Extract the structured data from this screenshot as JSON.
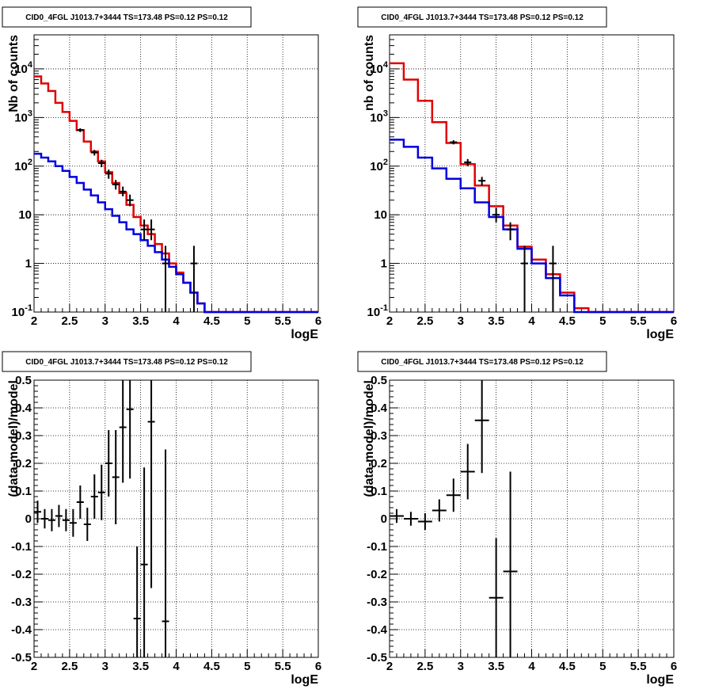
{
  "charts": [
    {
      "type": "histogram",
      "title": "CID0_4FGL J1013.7+3444 TS=173.48 PS=0.12 PS=0.12",
      "ylabel": "Nb of counts",
      "xlabel": "logE",
      "log_y": true,
      "xlim": [
        2,
        6
      ],
      "ylim": [
        0.1,
        50000
      ],
      "x_ticks": [
        "2",
        "2.5",
        "3",
        "3.5",
        "4",
        "4.5",
        "5",
        "5.5",
        "6"
      ],
      "y_ticks": [
        "10^-1",
        "1",
        "10",
        "10^2",
        "10^3",
        "10^4"
      ],
      "bin_edges": [
        2.0,
        2.1,
        2.2,
        2.3,
        2.4,
        2.5,
        2.6,
        2.7,
        2.8,
        2.9,
        3.0,
        3.1,
        3.2,
        3.3,
        3.4,
        3.5,
        3.6,
        3.7,
        3.8,
        3.9,
        4.0,
        4.1,
        4.2,
        4.3,
        4.4,
        4.5,
        4.6,
        4.7,
        4.8,
        4.9,
        5.0,
        5.1,
        5.2,
        5.3,
        5.4,
        5.5,
        5.6,
        5.7,
        5.8,
        5.9,
        6.0
      ],
      "series": [
        {
          "color": "#e00000",
          "values": [
            7000,
            5000,
            3500,
            2000,
            1300,
            850,
            550,
            320,
            200,
            125,
            75,
            45,
            28,
            16,
            9,
            6,
            4,
            2.5,
            1.6,
            1,
            0.65,
            0.4,
            0.25,
            0.15,
            0.1,
            0.1,
            0.1,
            0.1,
            0.1,
            0.1,
            0.1,
            0.1,
            0.1,
            0.1,
            0.1,
            0.1,
            0.1,
            0.1,
            0.1,
            0.1
          ]
        },
        {
          "color": "#0000e0",
          "values": [
            180,
            150,
            125,
            100,
            80,
            60,
            45,
            33,
            25,
            18,
            13,
            9.5,
            7,
            5,
            4,
            3,
            2.3,
            1.7,
            1.2,
            0.85,
            0.6,
            0.4,
            0.25,
            0.15,
            0.1,
            0.1,
            0.1,
            0.1,
            0.1,
            0.1,
            0.1,
            0.1,
            0.1,
            0.1,
            0.1,
            0.1,
            0.1,
            0.1,
            0.1,
            0.1
          ]
        }
      ],
      "points": [
        {
          "x": 2.65,
          "y": 550,
          "lo": 500,
          "hi": 600
        },
        {
          "x": 2.85,
          "y": 190,
          "lo": 165,
          "hi": 215
        },
        {
          "x": 2.95,
          "y": 115,
          "lo": 95,
          "hi": 135
        },
        {
          "x": 3.05,
          "y": 70,
          "lo": 55,
          "hi": 85
        },
        {
          "x": 3.15,
          "y": 42,
          "lo": 33,
          "hi": 52
        },
        {
          "x": 3.25,
          "y": 30,
          "lo": 24,
          "hi": 38
        },
        {
          "x": 3.35,
          "y": 20,
          "lo": 15,
          "hi": 26
        },
        {
          "x": 3.55,
          "y": 5,
          "lo": 3,
          "hi": 8
        },
        {
          "x": 3.65,
          "y": 5,
          "lo": 3,
          "hi": 8
        },
        {
          "x": 3.85,
          "y": 1,
          "lo": 0.1,
          "hi": 2.3
        },
        {
          "x": 4.25,
          "y": 1,
          "lo": 0.1,
          "hi": 2.3
        }
      ]
    },
    {
      "type": "histogram",
      "title": "CID0_4FGL J1013.7+3444 TS=173.48 PS=0.12 PS=0.12",
      "ylabel": "nb of counts",
      "xlabel": "logE",
      "log_y": true,
      "xlim": [
        2,
        6
      ],
      "ylim": [
        0.1,
        50000
      ],
      "x_ticks": [
        "2",
        "2.5",
        "3",
        "3.5",
        "4",
        "4.5",
        "5",
        "5.5",
        "6"
      ],
      "y_ticks": [
        "10^-1",
        "1",
        "10",
        "10^2",
        "10^3",
        "10^4"
      ],
      "bin_edges": [
        2.0,
        2.2,
        2.4,
        2.6,
        2.8,
        3.0,
        3.2,
        3.4,
        3.6,
        3.8,
        4.0,
        4.2,
        4.4,
        4.6,
        4.8,
        5.0,
        5.2,
        5.4,
        5.6,
        5.8,
        6.0
      ],
      "series": [
        {
          "color": "#e00000",
          "values": [
            13000,
            6000,
            2200,
            800,
            300,
            110,
            40,
            15,
            6,
            2.2,
            1.2,
            0.6,
            0.25,
            0.12,
            0.1,
            0.1,
            0.1,
            0.1,
            0.1,
            0.1
          ]
        },
        {
          "color": "#0000e0",
          "values": [
            350,
            250,
            150,
            90,
            55,
            35,
            18,
            9,
            5,
            2,
            1,
            0.5,
            0.22,
            0.1,
            0.1,
            0.1,
            0.1,
            0.1,
            0.1,
            0.1
          ]
        }
      ],
      "points": [
        {
          "x": 2.9,
          "y": 310,
          "lo": 280,
          "hi": 340
        },
        {
          "x": 3.1,
          "y": 120,
          "lo": 100,
          "hi": 140
        },
        {
          "x": 3.3,
          "y": 50,
          "lo": 40,
          "hi": 60
        },
        {
          "x": 3.5,
          "y": 10,
          "lo": 7,
          "hi": 14
        },
        {
          "x": 3.7,
          "y": 5,
          "lo": 3,
          "hi": 7
        },
        {
          "x": 3.9,
          "y": 1,
          "lo": 0.1,
          "hi": 2.3
        },
        {
          "x": 4.3,
          "y": 1,
          "lo": 0.1,
          "hi": 2.3
        }
      ]
    },
    {
      "type": "errorbar",
      "title": "CID0_4FGL J1013.7+3444 TS=173.48 PS=0.12 PS=0.12",
      "ylabel": "(data-model)/model",
      "xlabel": "logE",
      "log_y": false,
      "xlim": [
        2,
        6
      ],
      "ylim": [
        -0.5,
        0.5
      ],
      "x_ticks": [
        "2",
        "2.5",
        "3",
        "3.5",
        "4",
        "4.5",
        "5",
        "5.5",
        "6"
      ],
      "y_ticks": [
        "-0.5",
        "-0.4",
        "-0.3",
        "-0.2",
        "-0.1",
        "0",
        "0.1",
        "0.2",
        "0.3",
        "0.4",
        "0.5"
      ],
      "half_width": 0.05,
      "points": [
        {
          "x": 2.05,
          "y": 0.025,
          "err": 0.04
        },
        {
          "x": 2.15,
          "y": 0.0,
          "err": 0.035
        },
        {
          "x": 2.25,
          "y": -0.005,
          "err": 0.04
        },
        {
          "x": 2.35,
          "y": 0.01,
          "err": 0.04
        },
        {
          "x": 2.45,
          "y": -0.005,
          "err": 0.04
        },
        {
          "x": 2.55,
          "y": -0.015,
          "err": 0.05
        },
        {
          "x": 2.65,
          "y": 0.06,
          "err": 0.06
        },
        {
          "x": 2.75,
          "y": -0.02,
          "err": 0.06
        },
        {
          "x": 2.85,
          "y": 0.08,
          "err": 0.08
        },
        {
          "x": 2.95,
          "y": 0.095,
          "err": 0.1
        },
        {
          "x": 3.05,
          "y": 0.2,
          "err": 0.12
        },
        {
          "x": 3.15,
          "y": 0.15,
          "err": 0.17
        },
        {
          "x": 3.25,
          "y": 0.33,
          "err": 0.2
        },
        {
          "x": 3.35,
          "y": 0.395,
          "err": 0.25
        },
        {
          "x": 3.45,
          "y": -0.36,
          "err": 0.26
        },
        {
          "x": 3.55,
          "y": -0.165,
          "err": 0.35
        },
        {
          "x": 3.65,
          "y": 0.35,
          "err": 0.6
        },
        {
          "x": 3.85,
          "y": -0.37,
          "err": 0.62
        }
      ]
    },
    {
      "type": "errorbar",
      "title": "CID0_4FGL J1013.7+3444 TS=173.48 PS=0.12 PS=0.12",
      "ylabel": "(data-model)/model",
      "xlabel": "logE",
      "log_y": false,
      "xlim": [
        2,
        6
      ],
      "ylim": [
        -0.5,
        0.5
      ],
      "x_ticks": [
        "2",
        "2.5",
        "3",
        "3.5",
        "4",
        "4.5",
        "5",
        "5.5",
        "6"
      ],
      "y_ticks": [
        "-0.5",
        "-0.4",
        "-0.3",
        "-0.2",
        "-0.1",
        "0",
        "0.1",
        "0.2",
        "0.3",
        "0.4",
        "0.5"
      ],
      "half_width": 0.1,
      "points": [
        {
          "x": 2.1,
          "y": 0.01,
          "err": 0.025
        },
        {
          "x": 2.3,
          "y": 0.0,
          "err": 0.025
        },
        {
          "x": 2.5,
          "y": -0.01,
          "err": 0.03
        },
        {
          "x": 2.7,
          "y": 0.03,
          "err": 0.04
        },
        {
          "x": 2.9,
          "y": 0.085,
          "err": 0.06
        },
        {
          "x": 3.1,
          "y": 0.17,
          "err": 0.1
        },
        {
          "x": 3.3,
          "y": 0.355,
          "err": 0.19
        },
        {
          "x": 3.5,
          "y": -0.285,
          "err": 0.215
        },
        {
          "x": 3.7,
          "y": -0.19,
          "err": 0.36
        }
      ]
    }
  ]
}
